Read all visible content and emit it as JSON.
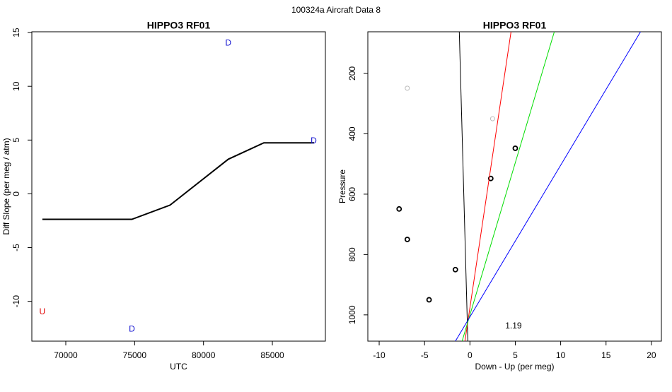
{
  "title": "100324a   Aircraft Data 8",
  "chart_data": [
    {
      "type": "line",
      "title": "HIPPO3 RF01",
      "xlabel": "UTC",
      "ylabel": "Diff Slope (per meg / atm)",
      "xlim": [
        67535,
        88850
      ],
      "ylim": [
        -13.7,
        15.07
      ],
      "xticks": [
        70000,
        75000,
        80000,
        85000
      ],
      "yticks": [
        -10,
        -5,
        0,
        5,
        10,
        15
      ],
      "series": [
        {
          "style": "line",
          "color": "#000000",
          "linewidth": 2,
          "x": [
            68300,
            74800,
            77570,
            81800,
            84380,
            88030
          ],
          "y": [
            -2.37,
            -2.37,
            -1.05,
            3.22,
            4.74,
            4.74
          ]
        }
      ],
      "annotations": [
        {
          "text": "U",
          "x": 68300,
          "y": -11,
          "color": "#e00000"
        },
        {
          "text": "D",
          "x": 74800,
          "y": -12.6,
          "color": "#1010d0"
        },
        {
          "text": "D",
          "x": 81800,
          "y": 14,
          "color": "#1010d0"
        },
        {
          "text": "D",
          "x": 88000,
          "y": 4.9,
          "color": "#1010d0"
        }
      ]
    },
    {
      "type": "scatter",
      "title": "HIPPO3 RF01",
      "xlabel": "Down - Up (per meg)",
      "ylabel": "Pressure",
      "xlim": [
        -11.25,
        21.1
      ],
      "ylim": [
        1087,
        62
      ],
      "xticks": [
        -10,
        -5,
        0,
        5,
        10,
        15,
        20
      ],
      "yticks": [
        200,
        400,
        600,
        800,
        1000
      ],
      "series": [
        {
          "style": "points",
          "color": "#bbbbbb",
          "linewidth": 1,
          "x": [
            -6.9,
            2.5
          ],
          "y": [
            249,
            350
          ]
        },
        {
          "style": "points",
          "color": "#000000",
          "linewidth": 1.8,
          "x": [
            5.0,
            2.3,
            -7.8,
            -6.9,
            -1.6,
            -4.5
          ],
          "y": [
            448,
            548,
            649,
            750,
            850,
            950
          ]
        },
        {
          "style": "line",
          "color": "#000000",
          "linewidth": 1,
          "x": [
            -1.17,
            -0.23
          ],
          "y": [
            62,
            1087
          ]
        },
        {
          "style": "line",
          "color": "#ff0000",
          "linewidth": 1,
          "x": [
            4.53,
            -0.55
          ],
          "y": [
            62,
            1087
          ]
        },
        {
          "style": "line",
          "color": "#00dd00",
          "linewidth": 1,
          "x": [
            9.3,
            -0.86
          ],
          "y": [
            62,
            1087
          ]
        },
        {
          "style": "line",
          "color": "#0000ff",
          "linewidth": 1,
          "x": [
            18.8,
            -1.6
          ],
          "y": [
            62,
            1087
          ]
        }
      ],
      "annotations": [
        {
          "text": "1.19",
          "x": 4.8,
          "y": 1037,
          "color": "#000000"
        }
      ]
    }
  ]
}
